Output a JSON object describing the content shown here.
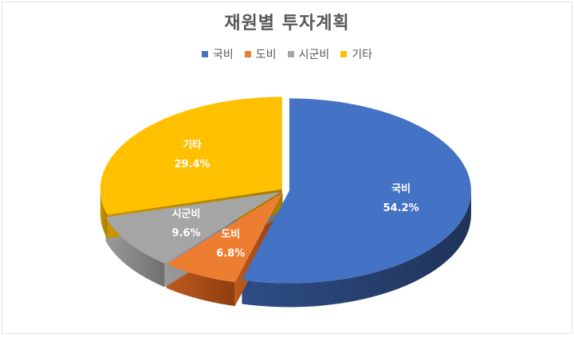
{
  "chart_data": {
    "type": "pie",
    "title": "재원별 투자계획",
    "categories": [
      "국비",
      "도비",
      "시군비",
      "기타"
    ],
    "values": [
      54.2,
      6.8,
      9.6,
      29.4
    ],
    "value_labels": [
      "54.2%",
      "6.8%",
      "9.6%",
      "29.4%"
    ],
    "colors": [
      "#4472C4",
      "#ED7D31",
      "#A5A5A5",
      "#FFC000"
    ],
    "legend_position": "top",
    "style": "3d-exploded"
  }
}
